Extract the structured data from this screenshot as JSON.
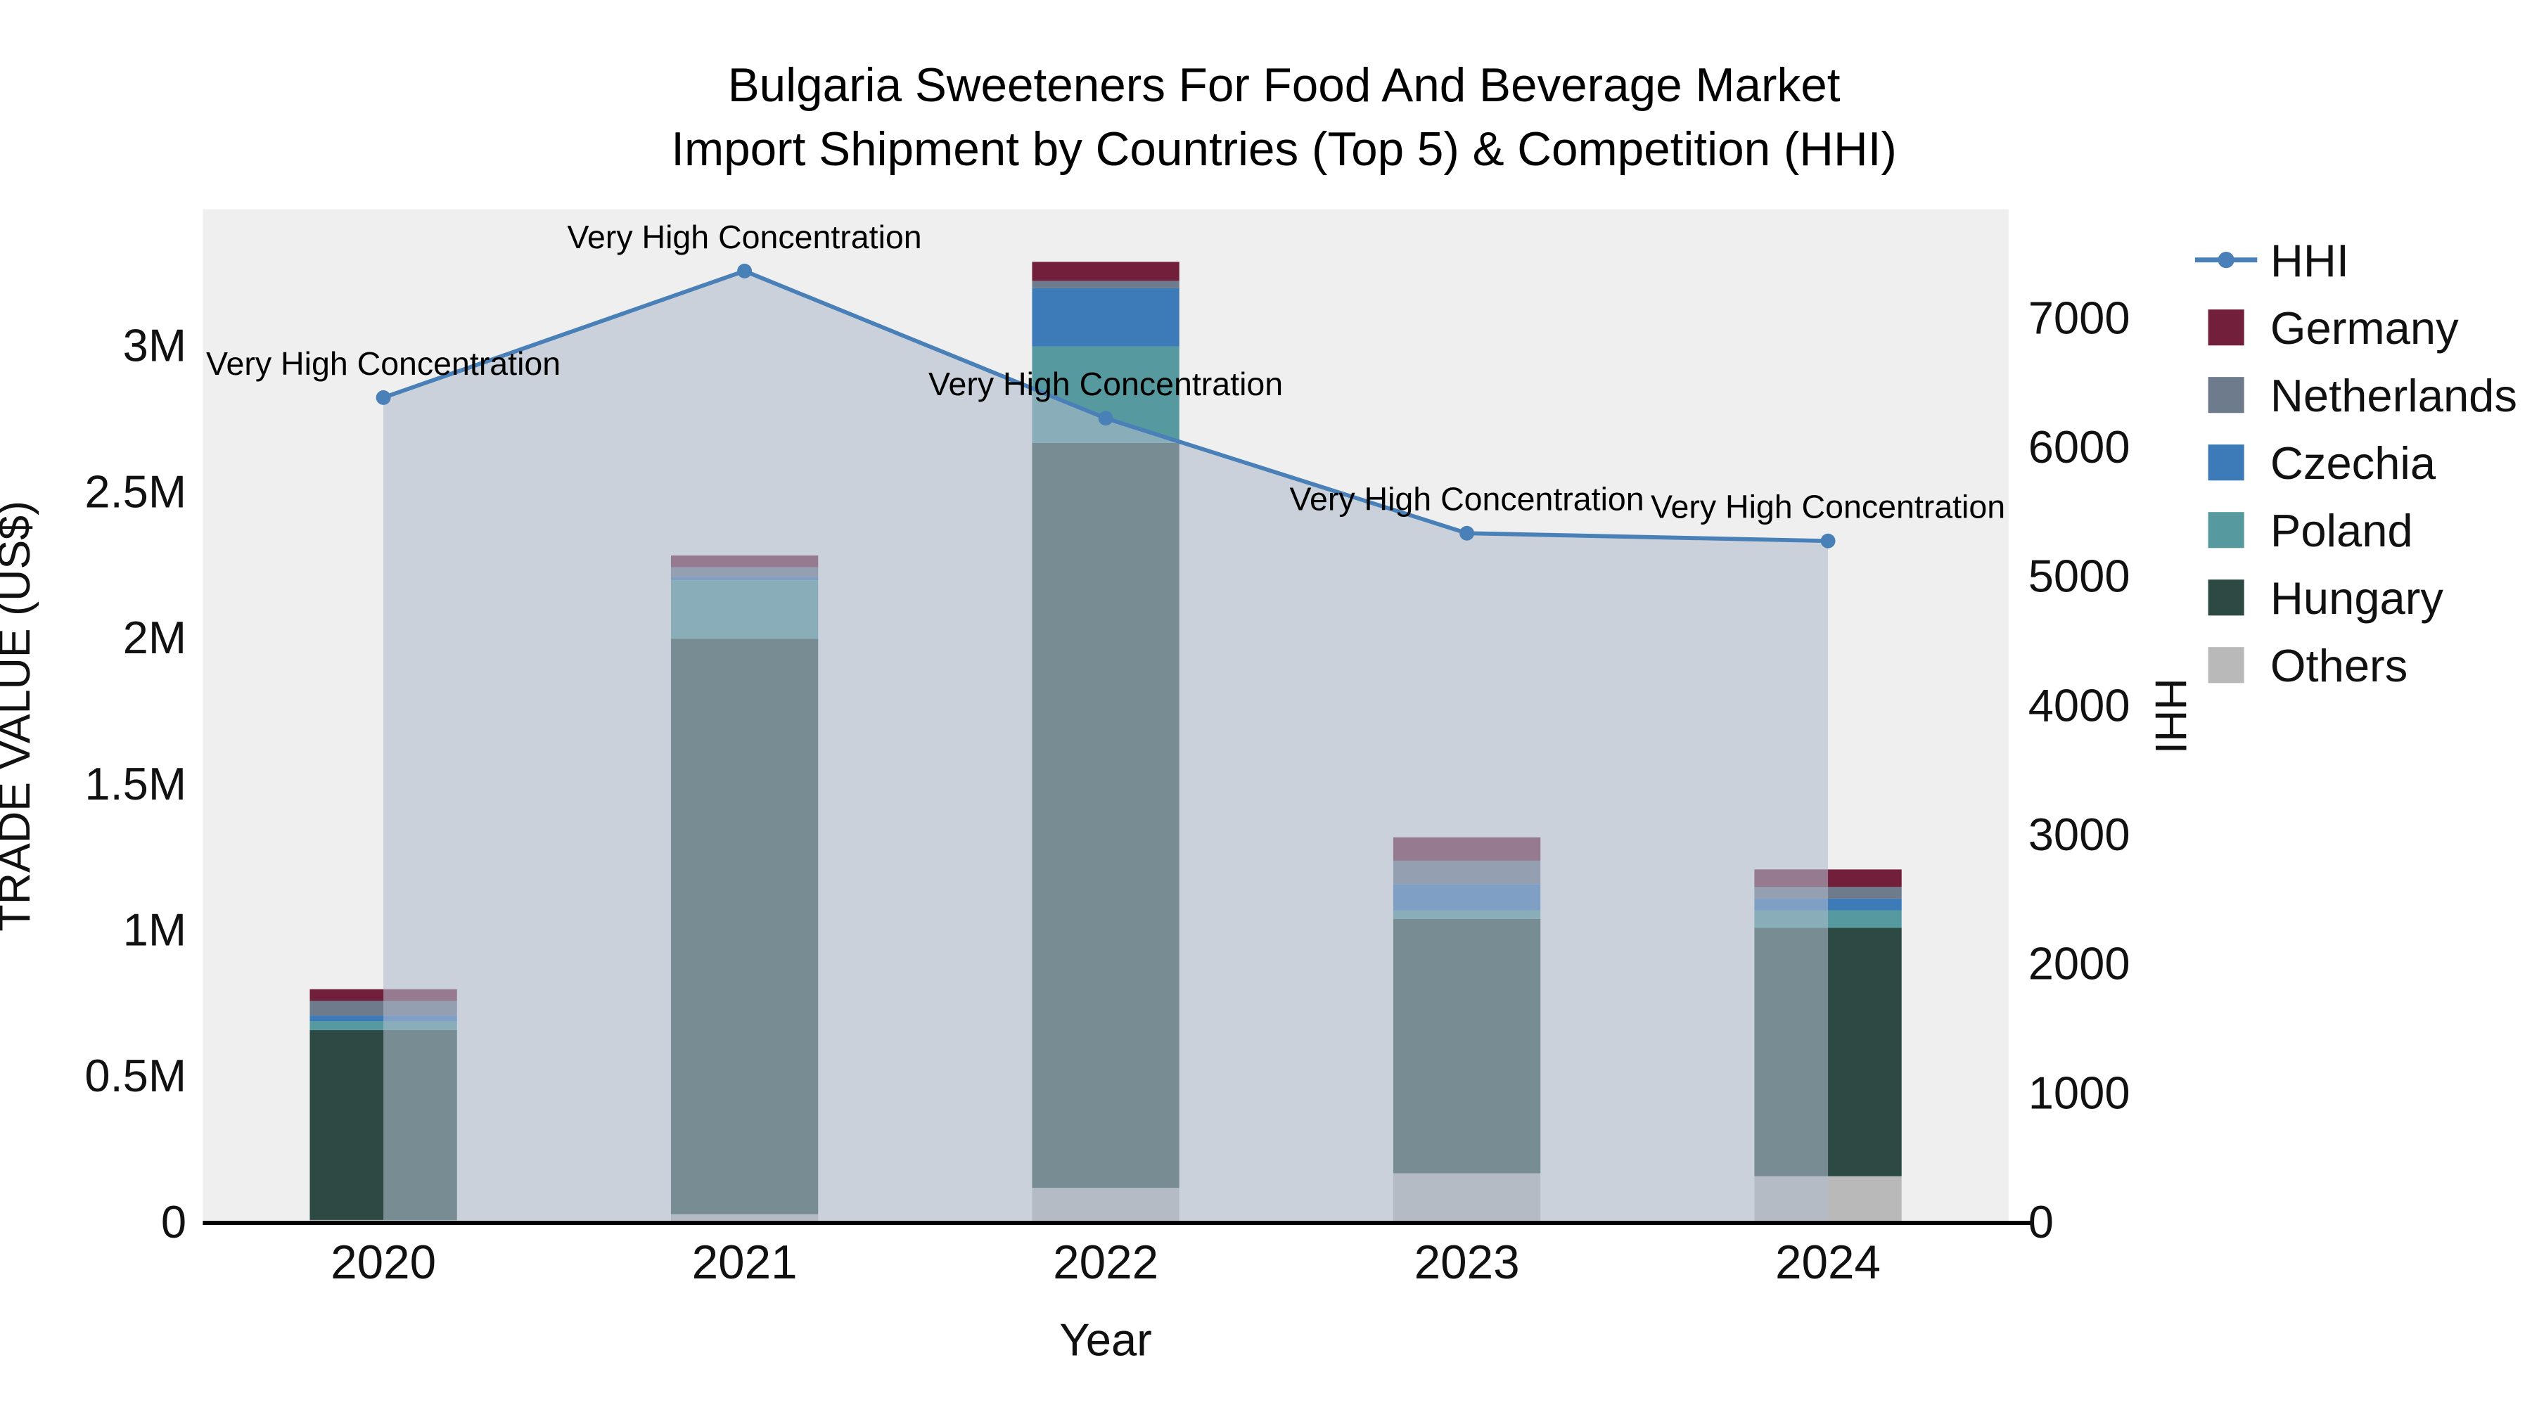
{
  "title": {
    "line1": "Bulgaria Sweeteners For Food And Beverage Market",
    "line2": "Import Shipment by Countries (Top 5) & Competition (HHI)"
  },
  "chart_data": {
    "type": "bar",
    "subtype": "stacked-bars-with-hhi-line-and-area",
    "x": [
      "2020",
      "2021",
      "2022",
      "2023",
      "2024"
    ],
    "xlabel": "Year",
    "ylabel_left": "TRADE VALUE (US$)",
    "ylabel_right": "HHI",
    "ylim_left": [
      0,
      3470000
    ],
    "ylim_right": [
      0,
      7848
    ],
    "plot_bg": "#efefef",
    "axis_color": "#000000",
    "text_color": "#111111",
    "left_ticks": [
      {
        "value": 0,
        "label": "0"
      },
      {
        "value": 500000,
        "label": "0.5M"
      },
      {
        "value": 1000000,
        "label": "1M"
      },
      {
        "value": 1500000,
        "label": "1.5M"
      },
      {
        "value": 2000000,
        "label": "2M"
      },
      {
        "value": 2500000,
        "label": "2.5M"
      },
      {
        "value": 3000000,
        "label": "3M"
      }
    ],
    "right_ticks": [
      {
        "value": 0,
        "label": "0"
      },
      {
        "value": 1000,
        "label": "1000"
      },
      {
        "value": 2000,
        "label": "2000"
      },
      {
        "value": 3000,
        "label": "3000"
      },
      {
        "value": 4000,
        "label": "4000"
      },
      {
        "value": 5000,
        "label": "5000"
      },
      {
        "value": 6000,
        "label": "6000"
      },
      {
        "value": 7000,
        "label": "7000"
      }
    ],
    "series": [
      {
        "name": "Others",
        "color": "#b9b9b9",
        "values": [
          10000,
          30000,
          120000,
          170000,
          160000
        ]
      },
      {
        "name": "Hungary",
        "color": "#2c4a43",
        "values": [
          650000,
          1970000,
          2550000,
          870000,
          850000
        ]
      },
      {
        "name": "Poland",
        "color": "#569a9f",
        "values": [
          30000,
          200000,
          330000,
          30000,
          60000
        ]
      },
      {
        "name": "Czechia",
        "color": "#3d7ab8",
        "values": [
          20000,
          10000,
          200000,
          90000,
          40000
        ]
      },
      {
        "name": "Netherlands",
        "color": "#6e7b8c",
        "values": [
          50000,
          35000,
          25000,
          80000,
          40000
        ]
      },
      {
        "name": "Germany",
        "color": "#721f3c",
        "values": [
          40000,
          40000,
          65000,
          80000,
          60000
        ]
      }
    ],
    "hhi": {
      "name": "HHI",
      "color": "#4a80b8",
      "area_fill": "rgba(175,188,205,0.58)",
      "values": [
        6390,
        7370,
        6230,
        5340,
        5280
      ]
    },
    "annotations": [
      "Very High Concentration",
      "Very High Concentration",
      "Very High Concentration",
      "Very High Concentration",
      "Very High Concentration"
    ]
  },
  "legend": {
    "items": [
      {
        "label": "HHI",
        "type": "line",
        "color": "#4a80b8"
      },
      {
        "label": "Germany",
        "type": "square",
        "color": "#721f3c"
      },
      {
        "label": "Netherlands",
        "type": "square",
        "color": "#6e7b8c"
      },
      {
        "label": "Czechia",
        "type": "square",
        "color": "#3d7ab8"
      },
      {
        "label": "Poland",
        "type": "square",
        "color": "#569a9f"
      },
      {
        "label": "Hungary",
        "type": "square",
        "color": "#2c4a43"
      },
      {
        "label": "Others",
        "type": "square",
        "color": "#b9b9b9"
      }
    ]
  }
}
